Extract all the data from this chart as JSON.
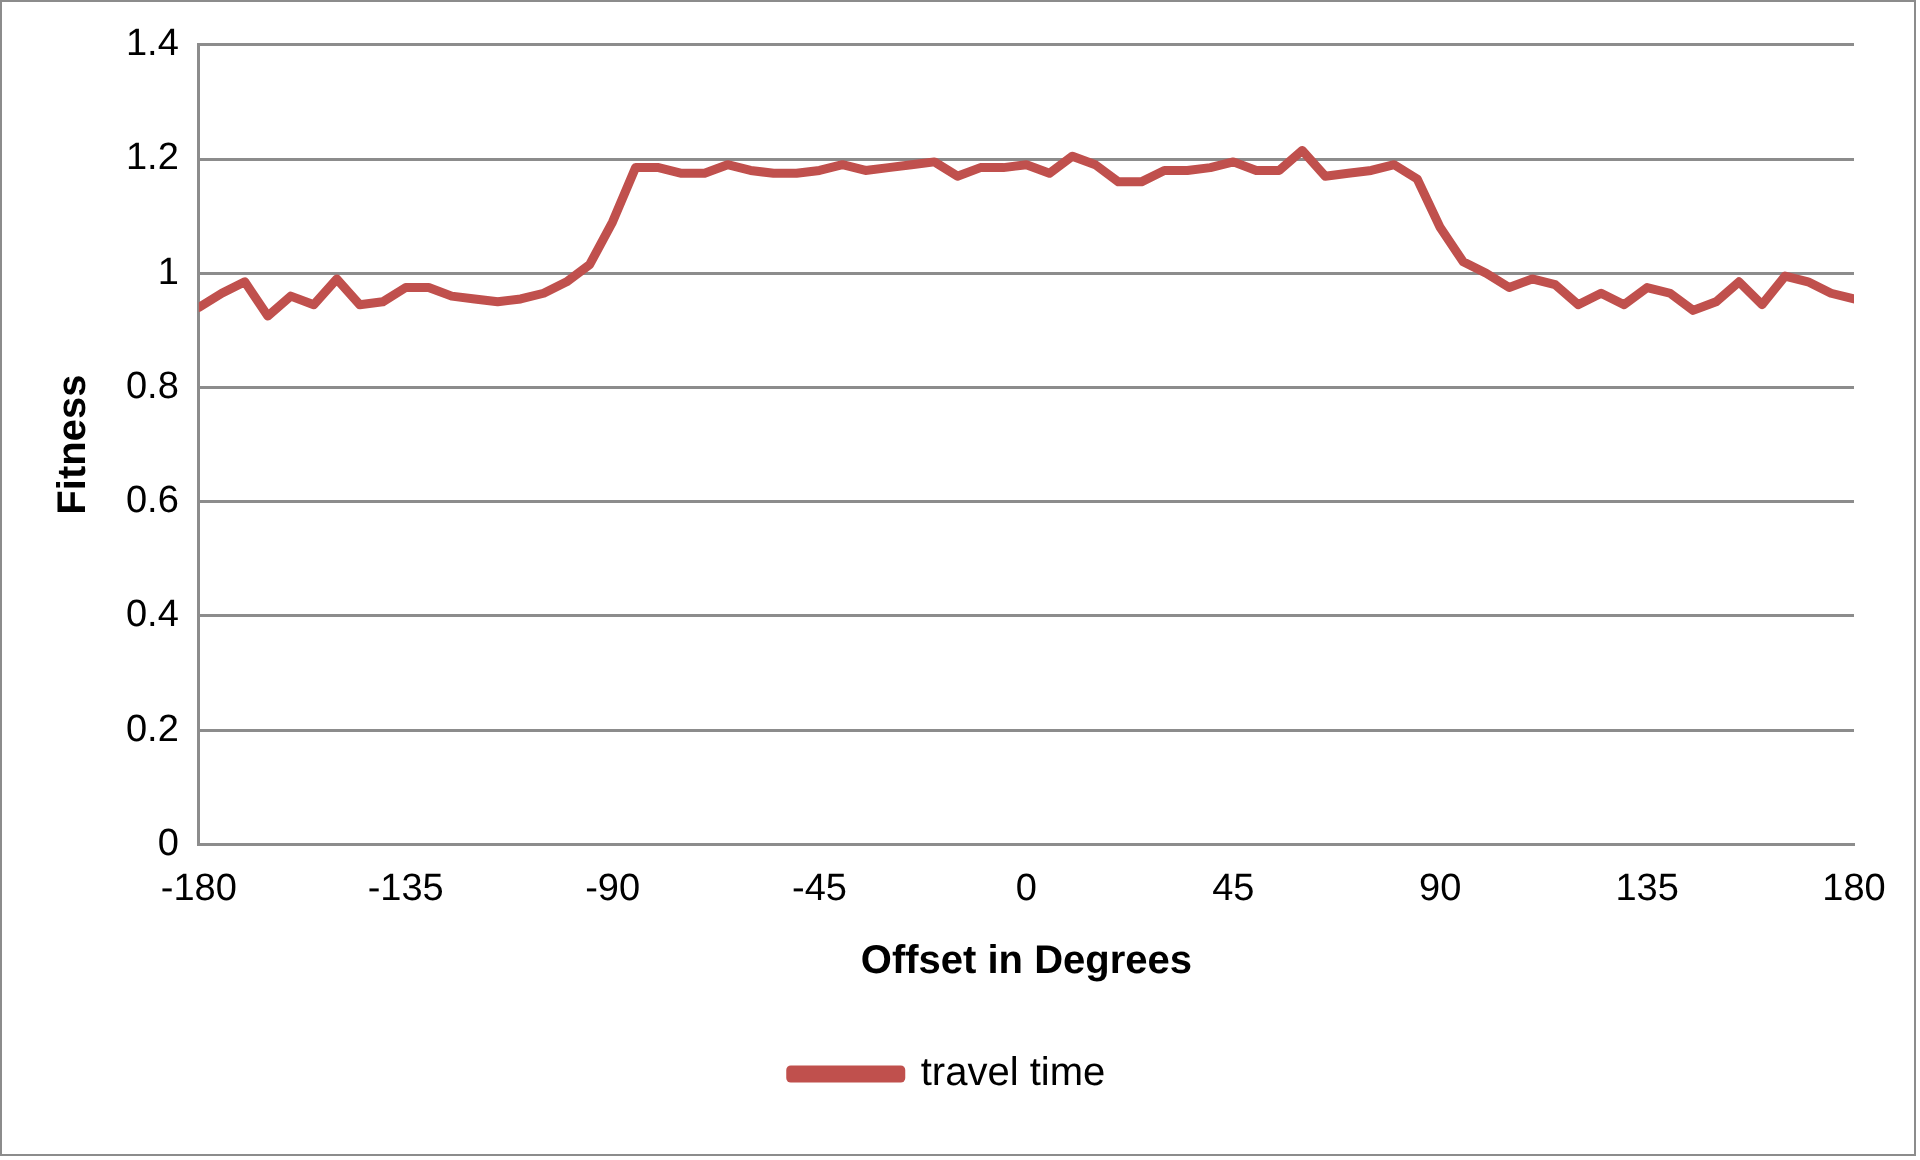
{
  "chart_data": {
    "type": "line",
    "xlabel": "Offset in Degrees",
    "ylabel": "Fitness",
    "x": [
      -180,
      -175,
      -170,
      -165,
      -160,
      -155,
      -150,
      -145,
      -140,
      -135,
      -130,
      -125,
      -120,
      -115,
      -110,
      -105,
      -100,
      -95,
      -90,
      -85,
      -80,
      -75,
      -70,
      -65,
      -60,
      -55,
      -50,
      -45,
      -40,
      -35,
      -30,
      -25,
      -20,
      -15,
      -10,
      -5,
      0,
      5,
      10,
      15,
      20,
      25,
      30,
      35,
      40,
      45,
      50,
      55,
      60,
      65,
      70,
      75,
      80,
      85,
      90,
      95,
      100,
      105,
      110,
      115,
      120,
      125,
      130,
      135,
      140,
      145,
      150,
      155,
      160,
      165,
      170,
      175,
      180
    ],
    "series": [
      {
        "name": "travel time",
        "color": "#c0504d",
        "values": [
          0.94,
          0.965,
          0.985,
          0.925,
          0.96,
          0.945,
          0.99,
          0.945,
          0.95,
          0.975,
          0.975,
          0.96,
          0.955,
          0.95,
          0.955,
          0.965,
          0.985,
          1.015,
          1.09,
          1.185,
          1.185,
          1.175,
          1.175,
          1.19,
          1.18,
          1.175,
          1.175,
          1.18,
          1.19,
          1.18,
          1.185,
          1.19,
          1.195,
          1.17,
          1.185,
          1.185,
          1.19,
          1.175,
          1.205,
          1.19,
          1.16,
          1.16,
          1.18,
          1.18,
          1.185,
          1.195,
          1.18,
          1.18,
          1.215,
          1.17,
          1.175,
          1.18,
          1.19,
          1.165,
          1.08,
          1.02,
          1.0,
          0.975,
          0.99,
          0.98,
          0.945,
          0.965,
          0.945,
          0.975,
          0.965,
          0.935,
          0.95,
          0.985,
          0.945,
          0.995,
          0.985,
          0.965,
          0.955
        ]
      }
    ],
    "xlim": [
      -180,
      180
    ],
    "xticks": [
      -180,
      -135,
      -90,
      -45,
      0,
      45,
      90,
      135,
      180
    ],
    "ylim": [
      0,
      1.4
    ],
    "yticks": [
      0,
      0.2,
      0.4,
      0.6,
      0.8,
      1,
      1.2,
      1.4
    ],
    "grid": "y",
    "legend": "bottom",
    "marker": "none",
    "line_style": "solid"
  }
}
